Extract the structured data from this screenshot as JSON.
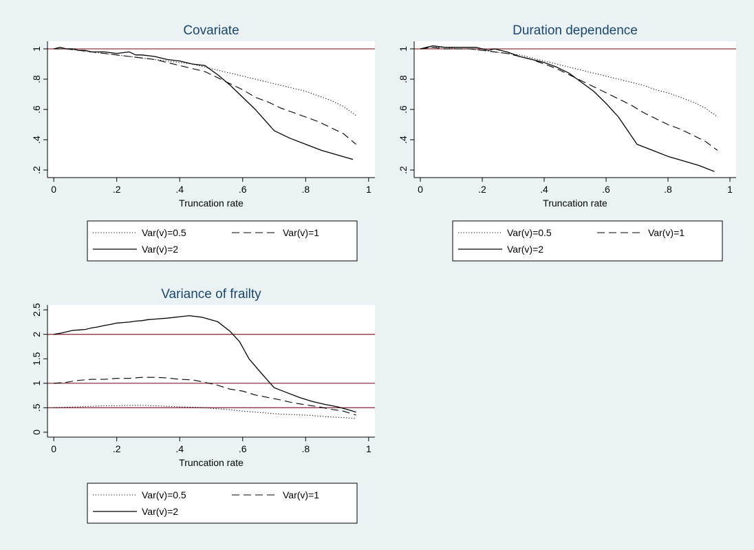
{
  "colors": {
    "background": "#eaf2f3",
    "plot_region": "#ffffff",
    "reference_line": "#90353b",
    "series": "#000000",
    "title": "#1a476f"
  },
  "chart_data": [
    {
      "type": "line",
      "title": "Covariate",
      "xlabel": "Truncation rate",
      "ylabel": "",
      "xlim": [
        -0.02,
        1.02
      ],
      "ylim": [
        0.15,
        1.05
      ],
      "xticks": [
        0,
        0.2,
        0.4,
        0.6,
        0.8,
        1
      ],
      "xtick_labels": [
        "0",
        ".2",
        ".4",
        ".6",
        ".8",
        "1"
      ],
      "yticks": [
        0.2,
        0.4,
        0.6,
        0.8,
        1
      ],
      "ytick_labels": [
        ".2",
        ".4",
        ".6",
        ".8",
        "1"
      ],
      "reference_lines": [
        1
      ],
      "grid": false,
      "legend_position": "bottom",
      "series": [
        {
          "name": "Var(v)=0.5",
          "style": "dotted",
          "x": [
            0,
            0.04,
            0.08,
            0.12,
            0.16,
            0.2,
            0.24,
            0.28,
            0.32,
            0.36,
            0.4,
            0.44,
            0.48,
            0.52,
            0.56,
            0.6,
            0.64,
            0.68,
            0.72,
            0.76,
            0.8,
            0.84,
            0.88,
            0.92,
            0.96
          ],
          "y": [
            1.0,
            1.0,
            0.99,
            0.98,
            0.97,
            0.96,
            0.95,
            0.94,
            0.93,
            0.92,
            0.91,
            0.9,
            0.88,
            0.86,
            0.84,
            0.82,
            0.8,
            0.78,
            0.76,
            0.74,
            0.72,
            0.69,
            0.66,
            0.62,
            0.56
          ]
        },
        {
          "name": "Var(v)=1",
          "style": "dashed",
          "x": [
            0,
            0.04,
            0.08,
            0.12,
            0.16,
            0.2,
            0.24,
            0.28,
            0.32,
            0.36,
            0.4,
            0.44,
            0.48,
            0.52,
            0.56,
            0.6,
            0.64,
            0.68,
            0.72,
            0.76,
            0.8,
            0.84,
            0.88,
            0.92,
            0.96
          ],
          "y": [
            1.0,
            1.0,
            0.99,
            0.98,
            0.97,
            0.96,
            0.95,
            0.94,
            0.93,
            0.91,
            0.89,
            0.87,
            0.85,
            0.81,
            0.77,
            0.73,
            0.68,
            0.65,
            0.61,
            0.58,
            0.55,
            0.52,
            0.48,
            0.44,
            0.37
          ]
        },
        {
          "name": "Var(v)=2",
          "style": "solid",
          "x": [
            0,
            0.02,
            0.04,
            0.06,
            0.08,
            0.1,
            0.12,
            0.16,
            0.2,
            0.24,
            0.26,
            0.28,
            0.32,
            0.36,
            0.4,
            0.44,
            0.48,
            0.52,
            0.56,
            0.6,
            0.64,
            0.7,
            0.75,
            0.8,
            0.85,
            0.9,
            0.95
          ],
          "y": [
            1.0,
            1.01,
            1.0,
            1.0,
            0.99,
            0.99,
            0.98,
            0.98,
            0.97,
            0.98,
            0.96,
            0.96,
            0.95,
            0.93,
            0.92,
            0.9,
            0.89,
            0.83,
            0.76,
            0.68,
            0.6,
            0.46,
            0.41,
            0.37,
            0.33,
            0.3,
            0.27
          ]
        }
      ]
    },
    {
      "type": "line",
      "title": "Duration dependence",
      "xlabel": "Truncation rate",
      "ylabel": "",
      "xlim": [
        -0.02,
        1.02
      ],
      "ylim": [
        0.15,
        1.05
      ],
      "xticks": [
        0,
        0.2,
        0.4,
        0.6,
        0.8,
        1
      ],
      "xtick_labels": [
        "0",
        ".2",
        ".4",
        ".6",
        ".8",
        "1"
      ],
      "yticks": [
        0.2,
        0.4,
        0.6,
        0.8,
        1
      ],
      "ytick_labels": [
        ".2",
        ".4",
        ".6",
        ".8",
        "1"
      ],
      "reference_lines": [
        1
      ],
      "grid": false,
      "legend_position": "bottom",
      "series": [
        {
          "name": "Var(v)=0.5",
          "style": "dotted",
          "x": [
            0,
            0.04,
            0.08,
            0.12,
            0.16,
            0.2,
            0.24,
            0.28,
            0.32,
            0.36,
            0.4,
            0.44,
            0.48,
            0.52,
            0.56,
            0.6,
            0.64,
            0.68,
            0.72,
            0.76,
            0.8,
            0.84,
            0.88,
            0.92,
            0.96
          ],
          "y": [
            1.0,
            1.01,
            1.01,
            1.0,
            1.0,
            0.99,
            0.98,
            0.97,
            0.96,
            0.94,
            0.92,
            0.9,
            0.88,
            0.86,
            0.84,
            0.82,
            0.8,
            0.78,
            0.76,
            0.73,
            0.71,
            0.68,
            0.65,
            0.61,
            0.55
          ]
        },
        {
          "name": "Var(v)=1",
          "style": "dashed",
          "x": [
            0,
            0.04,
            0.08,
            0.12,
            0.16,
            0.2,
            0.24,
            0.28,
            0.32,
            0.36,
            0.4,
            0.44,
            0.48,
            0.52,
            0.56,
            0.6,
            0.64,
            0.68,
            0.72,
            0.76,
            0.8,
            0.84,
            0.88,
            0.92,
            0.96
          ],
          "y": [
            1.0,
            1.01,
            1.0,
            1.0,
            1.0,
            0.99,
            0.98,
            0.97,
            0.95,
            0.93,
            0.9,
            0.87,
            0.83,
            0.79,
            0.75,
            0.71,
            0.67,
            0.63,
            0.58,
            0.54,
            0.5,
            0.47,
            0.43,
            0.39,
            0.33
          ]
        },
        {
          "name": "Var(v)=2",
          "style": "solid",
          "x": [
            0,
            0.02,
            0.04,
            0.08,
            0.12,
            0.16,
            0.18,
            0.2,
            0.22,
            0.24,
            0.26,
            0.28,
            0.32,
            0.36,
            0.4,
            0.44,
            0.48,
            0.52,
            0.56,
            0.6,
            0.64,
            0.7,
            0.75,
            0.8,
            0.85,
            0.9,
            0.95
          ],
          "y": [
            1.0,
            1.01,
            1.02,
            1.01,
            1.01,
            1.01,
            1.01,
            1.0,
            0.99,
            1.0,
            0.99,
            0.98,
            0.95,
            0.93,
            0.91,
            0.88,
            0.84,
            0.78,
            0.72,
            0.64,
            0.55,
            0.37,
            0.33,
            0.29,
            0.26,
            0.23,
            0.19
          ]
        }
      ]
    },
    {
      "type": "line",
      "title": "Variance of frailty",
      "xlabel": "Truncation rate",
      "ylabel": "",
      "xlim": [
        -0.02,
        1.02
      ],
      "ylim": [
        -0.1,
        2.6
      ],
      "xticks": [
        0,
        0.2,
        0.4,
        0.6,
        0.8,
        1
      ],
      "xtick_labels": [
        "0",
        ".2",
        ".4",
        ".6",
        ".8",
        "1"
      ],
      "yticks": [
        0,
        0.5,
        1,
        1.5,
        2,
        2.5
      ],
      "ytick_labels": [
        "0",
        ".5",
        "1",
        "1.5",
        "2",
        "2.5"
      ],
      "reference_lines": [
        0.5,
        1,
        2
      ],
      "grid": false,
      "legend_position": "bottom",
      "series": [
        {
          "name": "Var(v)=0.5",
          "style": "dotted",
          "x": [
            0,
            0.04,
            0.08,
            0.12,
            0.16,
            0.2,
            0.24,
            0.28,
            0.32,
            0.36,
            0.4,
            0.44,
            0.48,
            0.52,
            0.56,
            0.6,
            0.64,
            0.68,
            0.72,
            0.76,
            0.8,
            0.84,
            0.88,
            0.92,
            0.96
          ],
          "y": [
            0.5,
            0.51,
            0.52,
            0.53,
            0.54,
            0.54,
            0.55,
            0.55,
            0.54,
            0.53,
            0.52,
            0.51,
            0.5,
            0.48,
            0.46,
            0.43,
            0.41,
            0.39,
            0.37,
            0.36,
            0.35,
            0.33,
            0.31,
            0.3,
            0.28
          ]
        },
        {
          "name": "Var(v)=1",
          "style": "dashed",
          "x": [
            0,
            0.04,
            0.08,
            0.12,
            0.16,
            0.2,
            0.24,
            0.28,
            0.32,
            0.36,
            0.4,
            0.44,
            0.48,
            0.52,
            0.56,
            0.6,
            0.64,
            0.68,
            0.72,
            0.76,
            0.8,
            0.84,
            0.88,
            0.92,
            0.96
          ],
          "y": [
            1.0,
            1.02,
            1.06,
            1.08,
            1.08,
            1.1,
            1.1,
            1.12,
            1.12,
            1.11,
            1.08,
            1.07,
            1.02,
            0.96,
            0.88,
            0.84,
            0.76,
            0.71,
            0.66,
            0.6,
            0.56,
            0.52,
            0.47,
            0.43,
            0.35
          ]
        },
        {
          "name": "Var(v)=2",
          "style": "solid",
          "x": [
            0,
            0.02,
            0.04,
            0.06,
            0.08,
            0.1,
            0.12,
            0.14,
            0.16,
            0.18,
            0.2,
            0.22,
            0.24,
            0.26,
            0.28,
            0.3,
            0.32,
            0.36,
            0.4,
            0.43,
            0.47,
            0.52,
            0.56,
            0.59,
            0.62,
            0.66,
            0.7,
            0.74,
            0.78,
            0.82,
            0.86,
            0.9,
            0.94,
            0.96
          ],
          "y": [
            2.0,
            2.02,
            2.05,
            2.08,
            2.09,
            2.1,
            2.13,
            2.15,
            2.18,
            2.2,
            2.23,
            2.24,
            2.25,
            2.27,
            2.28,
            2.3,
            2.31,
            2.33,
            2.36,
            2.38,
            2.35,
            2.26,
            2.06,
            1.85,
            1.5,
            1.2,
            0.91,
            0.81,
            0.71,
            0.63,
            0.57,
            0.52,
            0.45,
            0.41
          ]
        }
      ]
    }
  ]
}
